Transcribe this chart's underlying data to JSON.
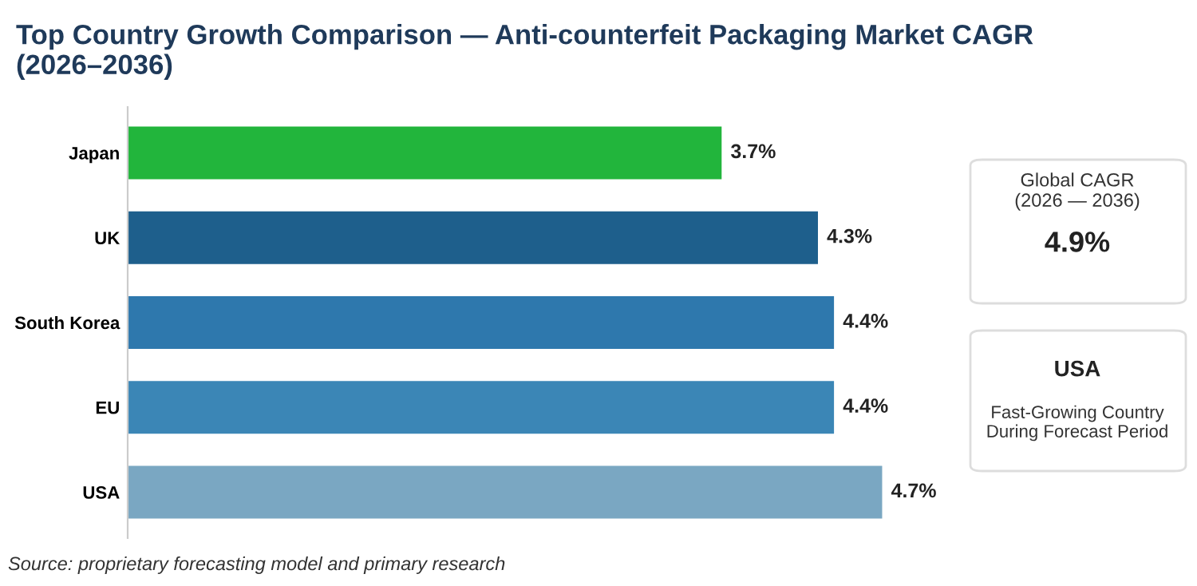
{
  "chart_data": {
    "type": "bar",
    "orientation": "horizontal",
    "title": "Top Country Growth Comparison — Anti-counterfeit Packaging Market CAGR (2026–2036)",
    "categories": [
      "Japan",
      "UK",
      "South Korea",
      "EU",
      "USA"
    ],
    "values": [
      3.7,
      4.3,
      4.4,
      4.4,
      4.7
    ],
    "colors": [
      "#22b53c",
      "#1e5f8c",
      "#2e78ad",
      "#3b86b6",
      "#7aa7c2"
    ],
    "value_labels": [
      "3.7%",
      "4.3%",
      "4.4%",
      "4.4%",
      "4.7%"
    ],
    "annotations": [
      "Global CAGR\n(2026 — 2036)",
      "4.9%",
      "USA",
      "Fast-Growing Country\nDuring Forecast Period",
      "Source: proprietary forecasting model and primary research"
    ],
    "grid": false,
    "legend": false
  }
}
